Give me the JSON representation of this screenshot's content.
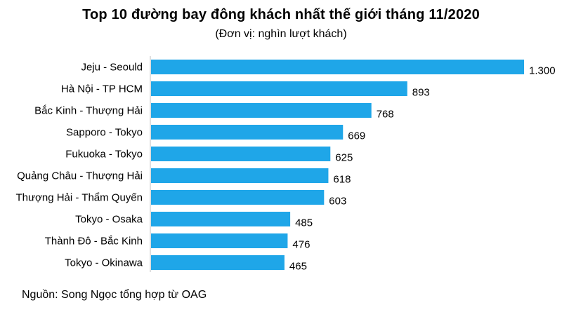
{
  "chart_data": {
    "type": "bar",
    "orientation": "horizontal",
    "title": "Top 10 đường bay đông khách nhất thế giới tháng 11/2020",
    "subtitle": "(Đơn vị: nghìn lượt khách)",
    "categories": [
      "Jeju - Seould",
      "Hà Nội - TP HCM",
      "Bắc Kinh - Thượng Hải",
      "Sapporo - Tokyo",
      "Fukuoka - Tokyo",
      "Quảng Châu - Thượng Hải",
      "Thượng Hải - Thẩm Quyến",
      "Tokyo - Osaka",
      "Thành  Đô - Bắc Kinh",
      "Tokyo - Okinawa"
    ],
    "values": [
      1300,
      893,
      768,
      669,
      625,
      618,
      603,
      485,
      476,
      465
    ],
    "value_labels": [
      "1.300",
      "893",
      "768",
      "669",
      "625",
      "618",
      "603",
      "485",
      "476",
      "465"
    ],
    "xlim": [
      0,
      1300
    ],
    "bar_color": "#1fa6e8",
    "grid": false,
    "legend": "none"
  },
  "source": "Nguồn: Song Ngọc tổng hợp từ OAG"
}
